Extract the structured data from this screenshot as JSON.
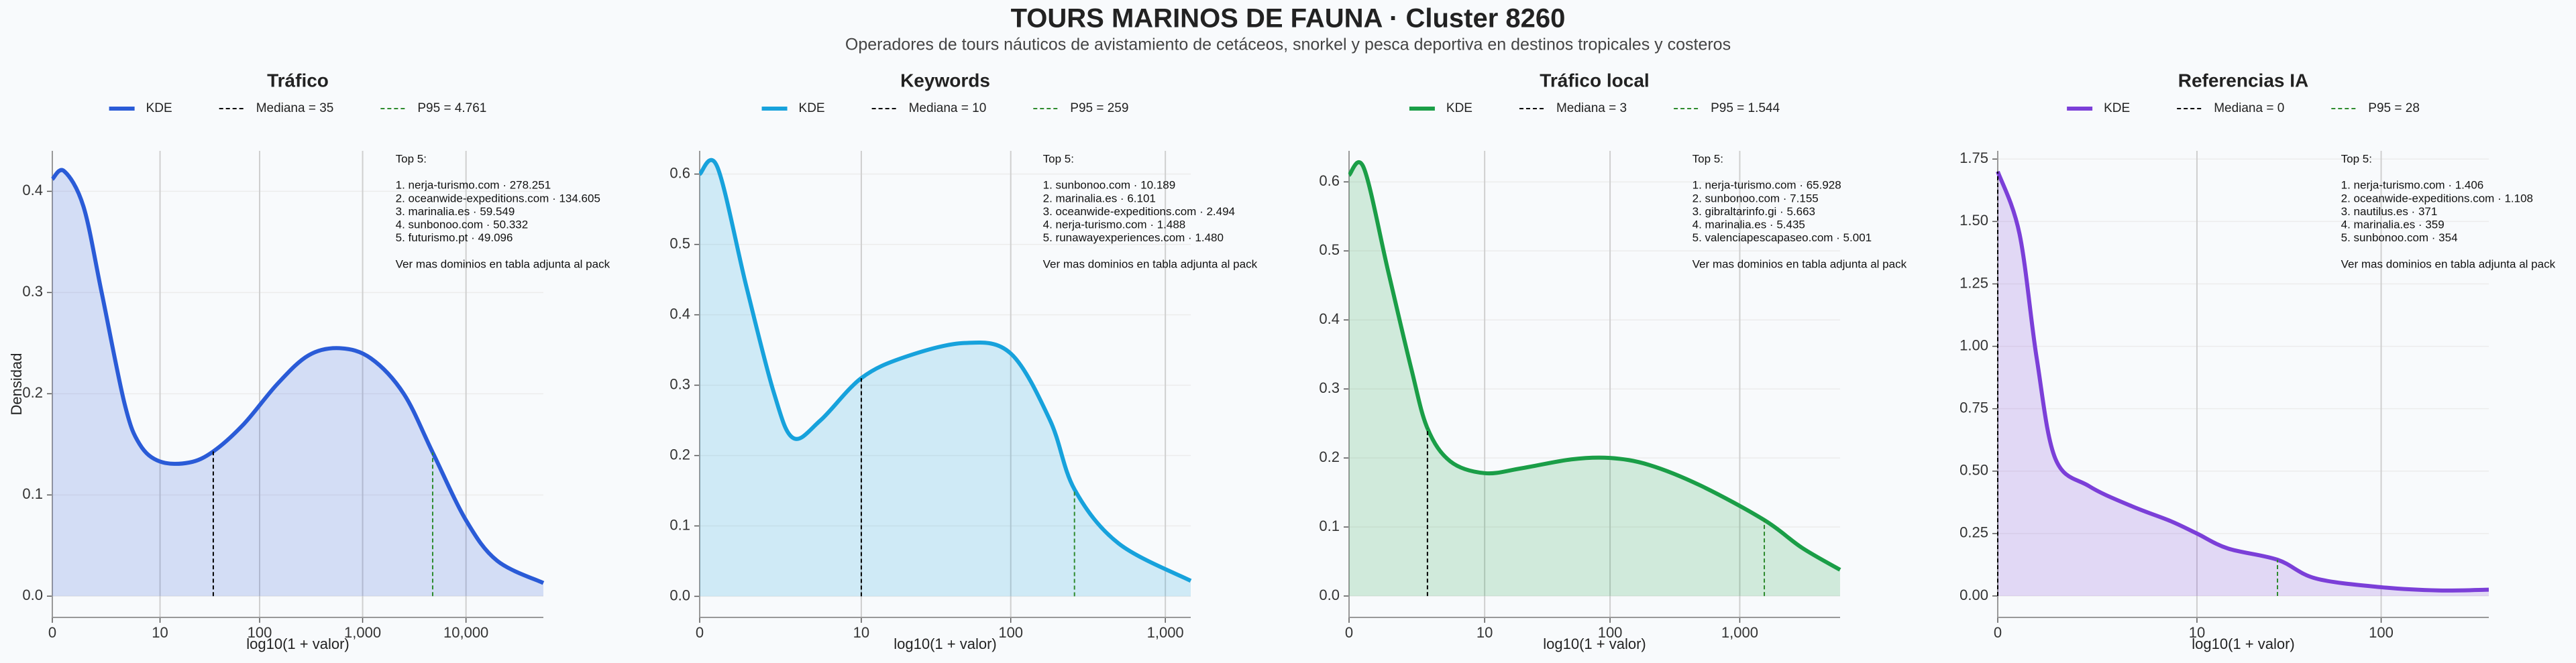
{
  "header": {
    "title": "TOURS MARINOS DE FAUNA · Cluster 8260",
    "subtitle": "Operadores de tours náuticos de avistamiento de cetáceos, snorkel y pesca deportiva en destinos tropicales y costeros"
  },
  "chart_data": [
    {
      "type": "area",
      "title": "Tráfico",
      "xlabel": "log10(1 + valor)",
      "ylabel": "Densidad",
      "x_scale": "log1p",
      "grid": true,
      "xlim": [
        0,
        56000
      ],
      "xticks": [
        0,
        10,
        100,
        {
          "value": 1000,
          "label": "1,000"
        },
        {
          "value": 10000,
          "label": "10,000"
        }
      ],
      "ylim": [
        -0.021,
        0.44
      ],
      "yticks": [
        {
          "value": 0,
          "label": "0.0"
        },
        0.1,
        0.2,
        0.3,
        0.4
      ],
      "x": [
        0,
        0.3,
        1,
        2,
        4,
        6,
        10,
        20,
        35,
        70,
        150,
        300,
        600,
        1200,
        2500,
        4761,
        10000,
        20000,
        56000
      ],
      "series": [
        {
          "name": "KDE",
          "color": "#2a5bd7",
          "values": [
            0.412,
            0.42,
            0.385,
            0.3,
            0.19,
            0.15,
            0.133,
            0.132,
            0.143,
            0.17,
            0.21,
            0.238,
            0.245,
            0.235,
            0.2,
            0.142,
            0.075,
            0.035,
            0.013
          ]
        }
      ],
      "reference_lines": [
        {
          "name": "Mediana = 35",
          "value": 35,
          "color": "#000000"
        },
        {
          "name": "P95 = 4.761",
          "value": 4761,
          "color": "#2e8b2e"
        }
      ],
      "annotation": {
        "title": "Top 5:",
        "items": [
          "1. nerja-turismo.com · 278.251",
          "2. oceanwide-expeditions.com · 134.605",
          "3. marinalia.es · 59.549",
          "4. sunbonoo.com · 50.332",
          "5. futurismo.pt · 49.096"
        ],
        "note": "Ver mas dominios en tabla adjunta al pack"
      }
    },
    {
      "type": "area",
      "title": "Keywords",
      "xlabel": "log10(1 + valor)",
      "x_scale": "log1p",
      "grid": true,
      "xlim": [
        0,
        1458
      ],
      "xticks": [
        0,
        10,
        100,
        {
          "value": 1000,
          "label": "1,000"
        }
      ],
      "ylim": [
        -0.03,
        0.633
      ],
      "yticks": [
        {
          "value": 0,
          "label": "0.0"
        },
        0.1,
        0.2,
        0.3,
        0.4,
        0.5,
        0.6
      ],
      "x": [
        0,
        0.3,
        1,
        2,
        3,
        5,
        10,
        20,
        50,
        100,
        180,
        259,
        500,
        1458
      ],
      "series": [
        {
          "name": "KDE",
          "color": "#17a2dc",
          "values": [
            0.6,
            0.61,
            0.44,
            0.29,
            0.225,
            0.25,
            0.31,
            0.34,
            0.36,
            0.345,
            0.25,
            0.152,
            0.075,
            0.022
          ]
        }
      ],
      "reference_lines": [
        {
          "name": "Mediana = 10",
          "value": 10,
          "color": "#000000"
        },
        {
          "name": "P95 = 259",
          "value": 259,
          "color": "#2e8b2e"
        }
      ],
      "annotation": {
        "title": "Top 5:",
        "items": [
          "1. sunbonoo.com · 10.189",
          "2. marinalia.es · 6.101",
          "3. oceanwide-expeditions.com · 2.494",
          "4. nerja-turismo.com · 1.488",
          "5. runawayexperiences.com · 1.480"
        ],
        "note": "Ver mas dominios en tabla adjunta al pack"
      }
    },
    {
      "type": "area",
      "title": "Tráfico local",
      "xlabel": "log10(1 + valor)",
      "x_scale": "log1p",
      "grid": true,
      "xlim": [
        0,
        5900
      ],
      "xticks": [
        0,
        10,
        100,
        {
          "value": 1000,
          "label": "1,000"
        }
      ],
      "ylim": [
        -0.031,
        0.645
      ],
      "yticks": [
        {
          "value": 0,
          "label": "0.0"
        },
        0.1,
        0.2,
        0.3,
        0.4,
        0.5,
        0.6
      ],
      "x": [
        0,
        0.3,
        1,
        2,
        3,
        5,
        10,
        20,
        50,
        100,
        200,
        500,
        1544,
        3000,
        5900
      ],
      "series": [
        {
          "name": "KDE",
          "color": "#1a9e47",
          "values": [
            0.61,
            0.62,
            0.47,
            0.33,
            0.243,
            0.195,
            0.178,
            0.185,
            0.198,
            0.2,
            0.19,
            0.16,
            0.11,
            0.07,
            0.038
          ]
        }
      ],
      "reference_lines": [
        {
          "name": "Mediana = 3",
          "value": 3,
          "color": "#000000"
        },
        {
          "name": "P95 = 1.544",
          "value": 1544,
          "color": "#2e8b2e"
        }
      ],
      "annotation": {
        "title": "Top 5:",
        "items": [
          "1. nerja-turismo.com · 65.928",
          "2. sunbonoo.com · 7.155",
          "3. gibraltarinfo.gi · 5.663",
          "4. marinalia.es · 5.435",
          "5. valenciapescapaseo.com · 5.001"
        ],
        "note": "Ver mas dominios en tabla adjunta al pack"
      }
    },
    {
      "type": "area",
      "title": "Referencias IA",
      "xlabel": "log10(1 + valor)",
      "x_scale": "log1p",
      "grid": true,
      "xlim": [
        0,
        368
      ],
      "xticks": [
        0,
        10,
        100
      ],
      "ylim": [
        -0.086,
        1.783
      ],
      "yticks": [
        {
          "value": 0,
          "label": "0.00"
        },
        0.25,
        {
          "value": 0.5,
          "label": "0.50"
        },
        0.75,
        {
          "value": 1,
          "label": "1.00"
        },
        1.25,
        {
          "value": 1.5,
          "label": "1.50"
        },
        1.75
      ],
      "x": [
        0,
        0.3,
        0.6,
        1,
        2,
        4,
        7,
        10,
        15,
        28,
        45,
        100,
        200,
        368
      ],
      "series": [
        {
          "name": "KDE",
          "color": "#7b3fd8",
          "values": [
            1.7,
            1.45,
            0.95,
            0.55,
            0.44,
            0.36,
            0.3,
            0.25,
            0.19,
            0.145,
            0.07,
            0.035,
            0.022,
            0.025
          ]
        }
      ],
      "reference_lines": [
        {
          "name": "Mediana = 0",
          "value": 0,
          "color": "#000000"
        },
        {
          "name": "P95 = 28",
          "value": 28,
          "color": "#2e8b2e"
        }
      ],
      "annotation": {
        "title": "Top 5:",
        "items": [
          "1. nerja-turismo.com · 1.406",
          "2. oceanwide-expeditions.com · 1.108",
          "3. nautilus.es · 371",
          "4. marinalia.es · 359",
          "5. sunbonoo.com · 354"
        ],
        "note": "Ver mas dominios en tabla adjunta al pack"
      }
    }
  ]
}
